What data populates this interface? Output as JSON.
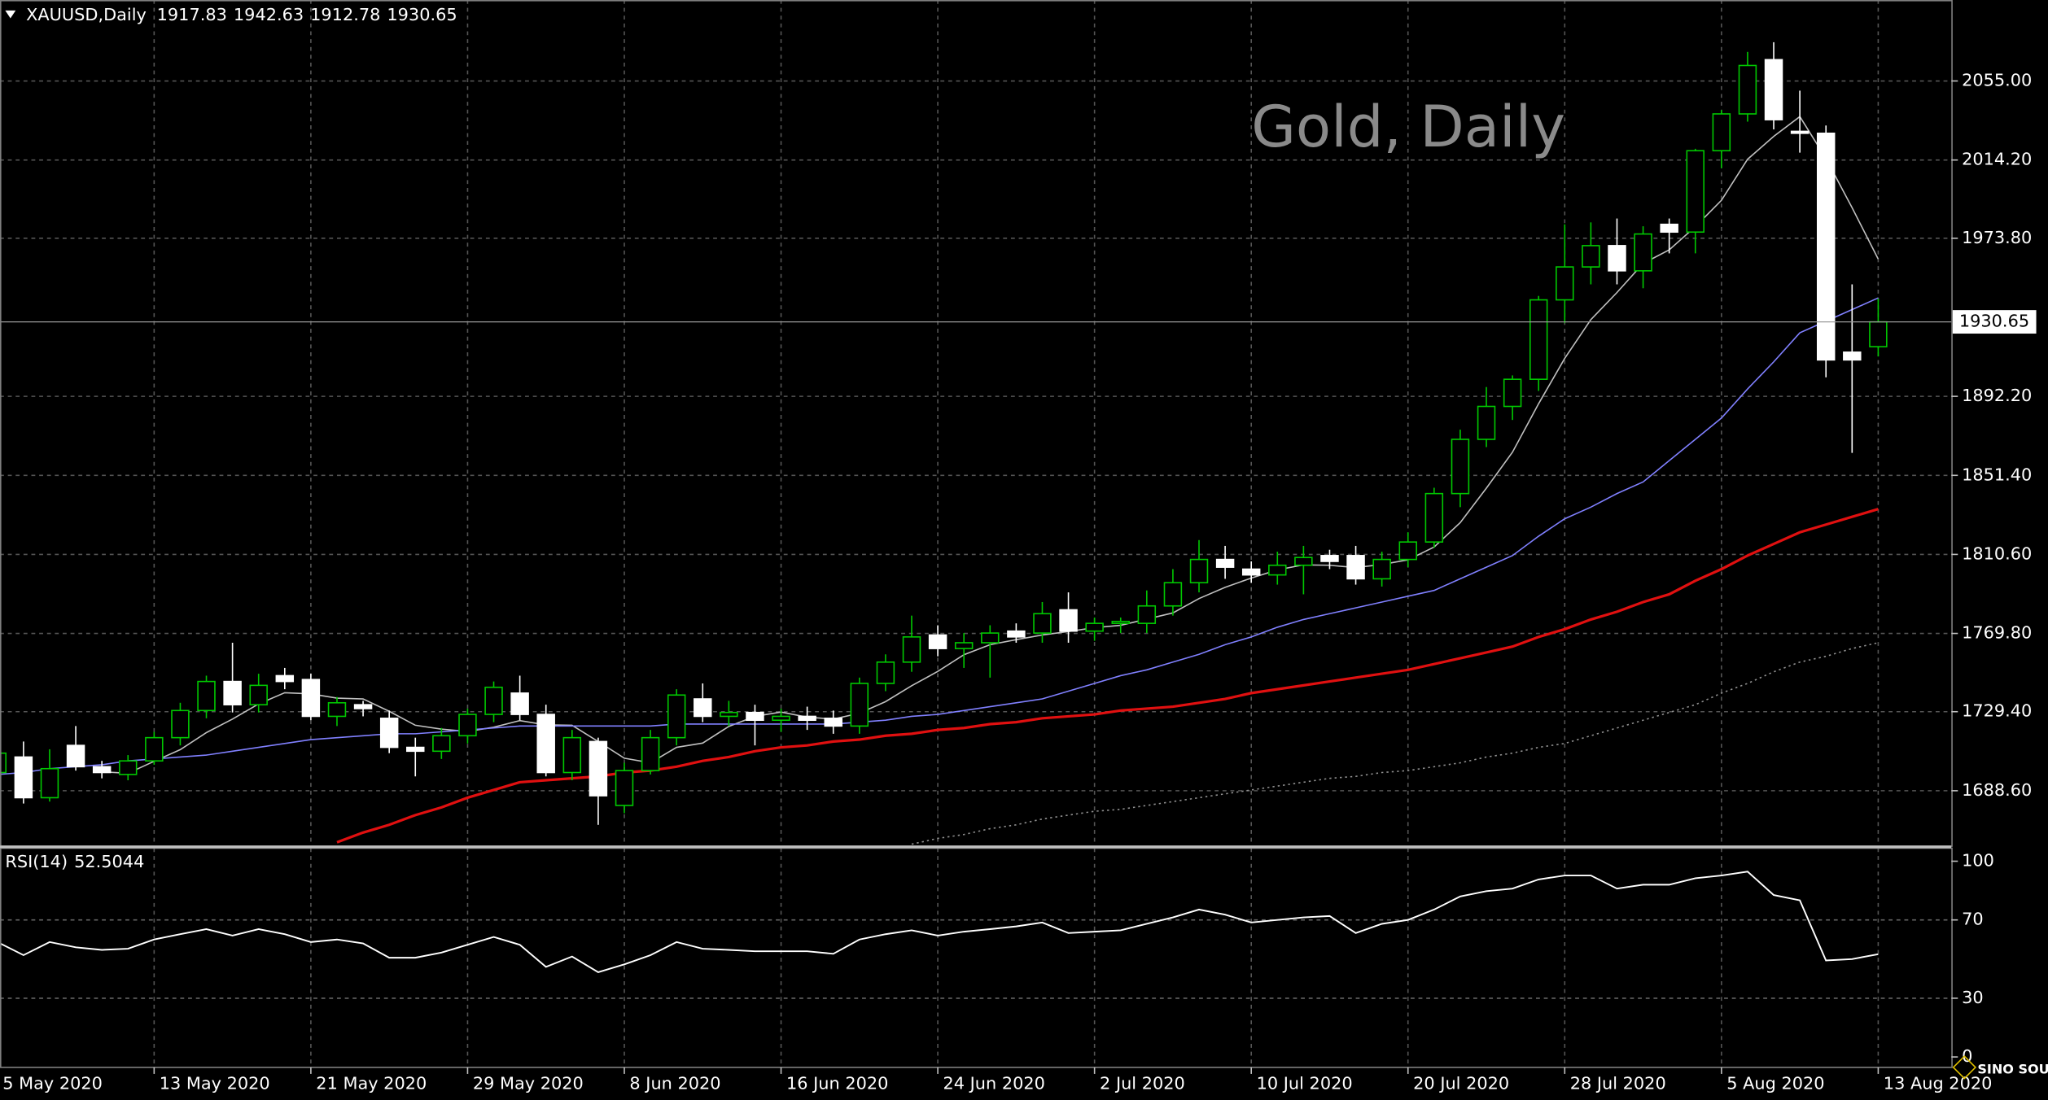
{
  "symbol": "XAUUSD,Daily",
  "logo": "SINO SOUND",
  "chart_data": [
    {
      "type": "candlestick",
      "title": "Gold, Daily",
      "categories": [
        "5 May 2020",
        null,
        null,
        null,
        null,
        null,
        "13 May 2020",
        null,
        null,
        null,
        null,
        null,
        "21 May 2020",
        null,
        null,
        null,
        null,
        null,
        "29 May 2020",
        null,
        null,
        null,
        null,
        null,
        "8 Jun 2020",
        null,
        null,
        null,
        null,
        null,
        "16 Jun 2020",
        null,
        null,
        null,
        null,
        null,
        "24 Jun 2020",
        null,
        null,
        null,
        null,
        null,
        "2 Jul 2020",
        null,
        null,
        null,
        null,
        null,
        "10 Jul 2020",
        null,
        null,
        null,
        null,
        null,
        "20 Jul 2020",
        null,
        null,
        null,
        null,
        null,
        "28 Jul 2020",
        null,
        null,
        null,
        null,
        null,
        "5 Aug 2020",
        null,
        null,
        null,
        null,
        null,
        "13 Aug 2020"
      ],
      "open": [
        1698,
        1706,
        1685,
        1712,
        1701,
        1697,
        1704,
        1716,
        1730,
        1745,
        1733,
        1748,
        1746,
        1727,
        1733,
        1726,
        1711,
        1709,
        1717,
        1728,
        1739,
        1728,
        1698,
        1714,
        1681,
        1699,
        1716,
        1736,
        1727,
        1729,
        1725,
        1727,
        1726,
        1722,
        1744,
        1755,
        1769,
        1762,
        1765,
        1771,
        1770,
        1782,
        1771,
        1775,
        1775,
        1784,
        1796,
        1808,
        1803,
        1800,
        1805,
        1810,
        1810,
        1798,
        1808,
        1817,
        1842,
        1870,
        1887,
        1901,
        1942,
        1959,
        1970,
        1957,
        1981,
        1977,
        2019,
        2038,
        2066,
        2029,
        2028,
        1915,
        1917.83
      ],
      "high": [
        1712,
        1714,
        1710,
        1722,
        1704,
        1707,
        1719,
        1734,
        1748,
        1765,
        1749,
        1752,
        1749,
        1737,
        1735,
        1730,
        1716,
        1721,
        1731,
        1745,
        1748,
        1733,
        1720,
        1716,
        1703,
        1720,
        1741,
        1744,
        1735,
        1733,
        1731,
        1732,
        1730,
        1747,
        1759,
        1779,
        1774,
        1770,
        1774,
        1775,
        1786,
        1791,
        1778,
        1778,
        1792,
        1803,
        1818,
        1815,
        1807,
        1812,
        1815,
        1813,
        1815,
        1812,
        1822,
        1845,
        1875,
        1897,
        1903,
        1944,
        1981,
        1982,
        1984,
        1980,
        1984,
        2020,
        2040,
        2070,
        2075,
        2050,
        2032,
        1950,
        1942.63
      ],
      "low": [
        1694,
        1682,
        1683,
        1699,
        1695,
        1694,
        1702,
        1712,
        1726,
        1729,
        1729,
        1741,
        1725,
        1722,
        1727,
        1708,
        1696,
        1705,
        1713,
        1724,
        1725,
        1696,
        1694,
        1671,
        1677,
        1697,
        1712,
        1724,
        1722,
        1712,
        1719,
        1720,
        1718,
        1718,
        1740,
        1750,
        1758,
        1752,
        1747,
        1765,
        1765,
        1765,
        1766,
        1770,
        1770,
        1779,
        1791,
        1798,
        1796,
        1795,
        1790,
        1803,
        1795,
        1794,
        1804,
        1814,
        1835,
        1866,
        1880,
        1895,
        1930,
        1950,
        1950,
        1948,
        1966,
        1966,
        2010,
        2034,
        2030,
        2018,
        1902,
        1863,
        1912.78
      ],
      "close": [
        1708,
        1685,
        1700,
        1701,
        1698,
        1704,
        1716,
        1730,
        1745,
        1733,
        1743,
        1745,
        1727,
        1734,
        1731,
        1711,
        1709,
        1717,
        1728,
        1742,
        1728,
        1698,
        1716,
        1686,
        1699,
        1716,
        1738,
        1727,
        1729,
        1725,
        1727,
        1725,
        1722,
        1744,
        1755,
        1768,
        1762,
        1765,
        1770,
        1768,
        1780,
        1771,
        1775,
        1776,
        1784,
        1796,
        1808,
        1804,
        1800,
        1805,
        1809,
        1807,
        1798,
        1808,
        1817,
        1842,
        1870,
        1887,
        1901,
        1942,
        1959,
        1970,
        1957,
        1976,
        1977,
        2019,
        2038,
        2063,
        2035,
        2028,
        1911,
        1911,
        1930.65
      ],
      "up_color": "#00c800",
      "down_color": "#ffffff",
      "series": [
        {
          "color": "#c0c0c0",
          "values": [
            null,
            null,
            null,
            null,
            1698.4,
            1697.6,
            1703.8,
            1709.8,
            1718.6,
            1725.6,
            1733.4,
            1739.2,
            1738.6,
            1736.4,
            1736,
            1729.6,
            1722.4,
            1720.4,
            1719.2,
            1721.4,
            1724.8,
            1722.6,
            1722.4,
            1714,
            1705.4,
            1703,
            1711,
            1713.2,
            1721.8,
            1727,
            1729.2,
            1726.6,
            1725.6,
            1728.6,
            1734.6,
            1742.8,
            1750.2,
            1758.8,
            1764,
            1766.6,
            1769,
            1770.8,
            1772.8,
            1774,
            1777.2,
            1780.4,
            1787.8,
            1793.6,
            1798.4,
            1802.6,
            1805.2,
            1805,
            1803.8,
            1805.4,
            1807.8,
            1814.4,
            1827,
            1844.8,
            1863.4,
            1888.4,
            1911.8,
            1931.8,
            1945.8,
            1960.8,
            1967.8,
            1979.8,
            1993.4,
            2014.6,
            2026.4,
            2036.6,
            2015,
            1989.6,
            1963.1
          ]
        },
        {
          "color": "#8080ff",
          "values": [
            1697,
            1698,
            1700,
            1701,
            1702,
            1704,
            1705,
            1706,
            1707,
            1709,
            1711,
            1713,
            1715,
            1716,
            1717,
            1718,
            1718,
            1719,
            1720,
            1721,
            1722,
            1722,
            1722,
            1722,
            1722,
            1722,
            1723,
            1723,
            1723,
            1723,
            1723,
            1723,
            1723,
            1724,
            1725,
            1727,
            1728,
            1730,
            1732,
            1734,
            1736,
            1740,
            1744,
            1748,
            1751,
            1755,
            1759,
            1764,
            1768,
            1773,
            1777,
            1780,
            1783,
            1786,
            1789,
            1792,
            1798,
            1804,
            1810,
            1820,
            1829,
            1835,
            1842,
            1848,
            1859,
            1870,
            1881,
            1896,
            1910,
            1925,
            1931,
            1937,
            1943
          ]
        },
        {
          "color": "#e01010",
          "values": [
            null,
            null,
            null,
            null,
            null,
            null,
            null,
            null,
            null,
            null,
            null,
            null,
            null,
            1662,
            1667,
            1671,
            1676,
            1680,
            1685,
            1689,
            1693,
            1694,
            1695,
            1696,
            1698,
            1699,
            1701,
            1704,
            1706,
            1709,
            1711,
            1712,
            1714,
            1715,
            1717,
            1718,
            1720,
            1721,
            1723,
            1724,
            1726,
            1727,
            1728,
            1730,
            1731,
            1732,
            1734,
            1736,
            1739,
            1741,
            1743,
            1745,
            1747,
            1749,
            1751,
            1754,
            1757,
            1760,
            1763,
            1768,
            1772,
            1777,
            1781,
            1786,
            1790,
            1797,
            1803,
            1810,
            1816,
            1822,
            1826,
            1830,
            1834
          ]
        },
        {
          "color": "#909090",
          "dash": true,
          "values": [
            null,
            null,
            null,
            null,
            null,
            null,
            null,
            null,
            null,
            null,
            null,
            null,
            null,
            null,
            null,
            null,
            null,
            null,
            null,
            null,
            null,
            null,
            null,
            null,
            null,
            null,
            null,
            null,
            null,
            null,
            null,
            null,
            null,
            null,
            null,
            1661,
            1664,
            1666,
            1669,
            1671,
            1674,
            1676,
            1678,
            1679,
            1681,
            1683,
            1685,
            1687,
            1689,
            1691,
            1693,
            1695,
            1696,
            1698,
            1699,
            1701,
            1703,
            1706,
            1708,
            1711,
            1713,
            1717,
            1721,
            1725,
            1729,
            1733,
            1739,
            1744,
            1750,
            1755,
            1758,
            1762,
            1765
          ]
        }
      ],
      "ylim": [
        1660.3,
        2096.8
      ],
      "yticks": [
        {
          "value": 2055,
          "label": "2055.00"
        },
        {
          "value": 2014.2,
          "label": "2014.20"
        },
        {
          "value": 1973.8,
          "label": "1973.80"
        },
        {
          "value": 1892.2,
          "label": "1892.20"
        },
        {
          "value": 1851.4,
          "label": "1851.40"
        },
        {
          "value": 1810.6,
          "label": "1810.60"
        },
        {
          "value": 1769.8,
          "label": "1769.80"
        },
        {
          "value": 1729.4,
          "label": "1729.40"
        },
        {
          "value": 1688.6,
          "label": "1688.60"
        }
      ],
      "grid": true
    },
    {
      "type": "line",
      "title": "RSI(14)",
      "series": [
        {
          "color": "#ffffff",
          "values": [
            58.7,
            52,
            58.7,
            56,
            54.7,
            55.3,
            60,
            62.7,
            65.3,
            62,
            65.3,
            62.7,
            58.7,
            60,
            58,
            50.7,
            50.7,
            53.3,
            57.3,
            61.3,
            57.3,
            46,
            51.3,
            43.3,
            47.3,
            52,
            58.7,
            55.3,
            54.7,
            54,
            54,
            54,
            52.7,
            60,
            62.7,
            64.7,
            62,
            64,
            65.3,
            66.7,
            68.7,
            63.3,
            64,
            64.7,
            68,
            71.3,
            75.3,
            72.7,
            68.7,
            70,
            71.3,
            72,
            63.3,
            68,
            70,
            75.3,
            82,
            84.7,
            86,
            90.7,
            92.7,
            92.7,
            86,
            88,
            88,
            91.3,
            92.7,
            94.7,
            82.7,
            80,
            49.3,
            50,
            52.5044
          ]
        }
      ],
      "ylim": [
        0,
        100
      ],
      "yticks": [
        0,
        30,
        70,
        100
      ],
      "grid_ticks": [
        30,
        70
      ]
    }
  ]
}
